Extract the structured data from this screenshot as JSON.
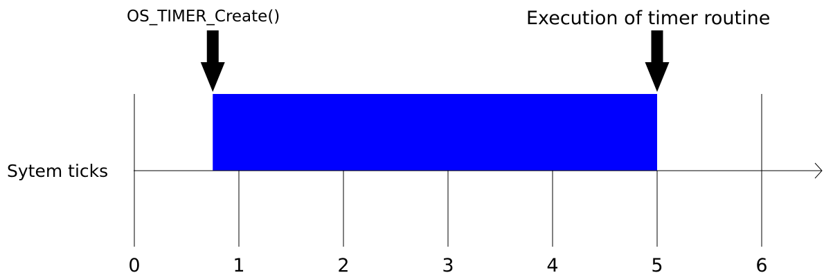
{
  "diagram": {
    "axis_label": "Sytem ticks",
    "tick_labels": [
      "0",
      "1",
      "2",
      "3",
      "4",
      "5",
      "6"
    ],
    "timer_start": 0.75,
    "timer_end": 5,
    "annotations": {
      "create": {
        "text": "OS_TIMER_Create()",
        "at_tick": 0.75
      },
      "execute": {
        "text": "Execution of timer routine",
        "at_tick": 5
      }
    },
    "colors": {
      "timer_bar": "#0000ff",
      "lines": "#000000",
      "arrows": "#000000"
    }
  }
}
